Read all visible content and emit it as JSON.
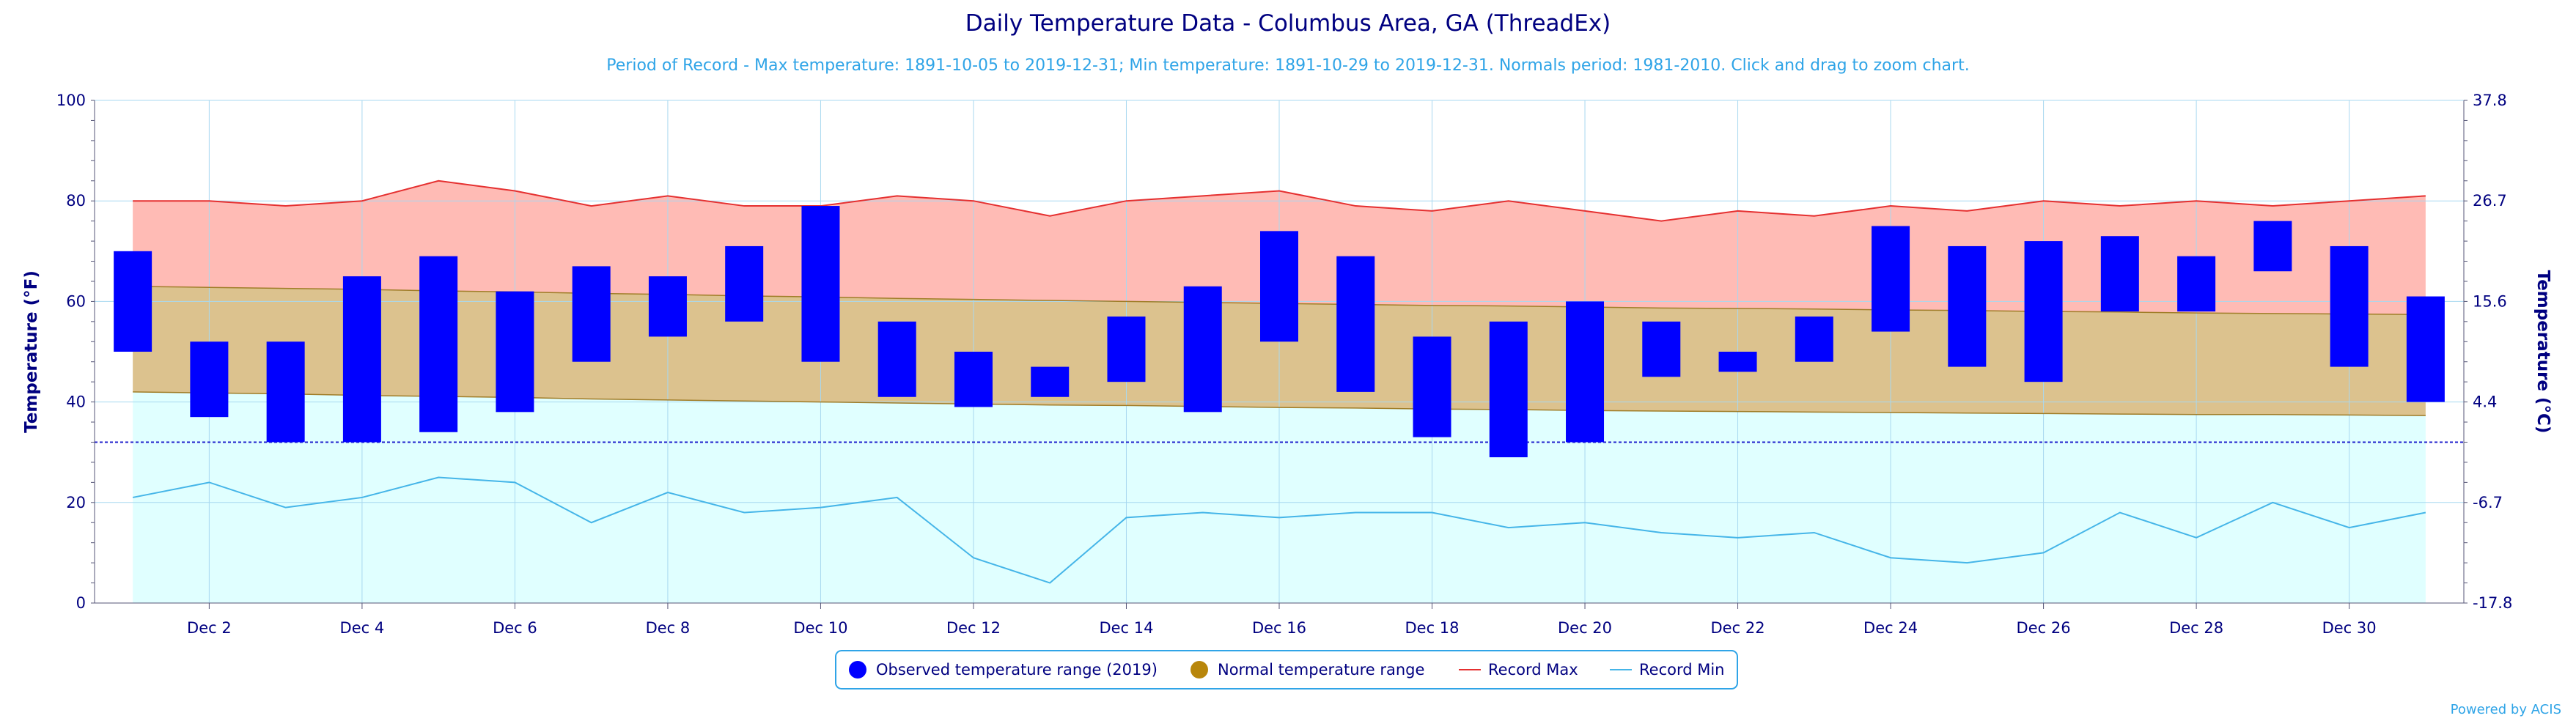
{
  "chart_data": {
    "type": "bar",
    "title": "Daily Temperature Data - Columbus Area, GA (ThreadEx)",
    "subtitle": "Period of Record - Max temperature: 1891-10-05 to 2019-12-31; Min temperature: 1891-10-29 to 2019-12-31. Normals period: 1981-2010. Click and drag to zoom chart.",
    "ylabel": "Temperature (°F)",
    "ylabel_right": "Temperature (°C)",
    "ylim": [
      0,
      100
    ],
    "ylim_right": [
      -17.8,
      37.8
    ],
    "y_ticks": [
      "0",
      "20",
      "40",
      "60",
      "80",
      "100"
    ],
    "y_ticks_right": [
      "-17.8",
      "-6.7",
      "4.4",
      "15.6",
      "26.7",
      "37.8"
    ],
    "freezing_line": 32,
    "x_days": [
      1,
      2,
      3,
      4,
      5,
      6,
      7,
      8,
      9,
      10,
      11,
      12,
      13,
      14,
      15,
      16,
      17,
      18,
      19,
      20,
      21,
      22,
      23,
      24,
      25,
      26,
      27,
      28,
      29,
      30,
      31
    ],
    "x_tick_labels": [
      "Dec 2",
      "Dec 4",
      "Dec 6",
      "Dec 8",
      "Dec 10",
      "Dec 12",
      "Dec 14",
      "Dec 16",
      "Dec 18",
      "Dec 20",
      "Dec 22",
      "Dec 24",
      "Dec 26",
      "Dec 28",
      "Dec 30"
    ],
    "series": [
      {
        "name": "Observed temperature range (2019)",
        "color": "#0000ff",
        "low": [
          50,
          37,
          32,
          32,
          34,
          38,
          48,
          53,
          56,
          48,
          41,
          39,
          41,
          44,
          38,
          52,
          42,
          33,
          29,
          32,
          45,
          46,
          48,
          54,
          47,
          44,
          58,
          58,
          66,
          47,
          40
        ],
        "high": [
          70,
          52,
          52,
          65,
          69,
          62,
          67,
          65,
          71,
          79,
          56,
          50,
          47,
          57,
          63,
          74,
          69,
          53,
          56,
          60,
          56,
          50,
          57,
          75,
          71,
          72,
          73,
          69,
          76,
          71,
          61
        ]
      },
      {
        "name": "Normal temperature range",
        "color": "#b8860b",
        "low": [
          42,
          41.8,
          41.6,
          41.3,
          41.1,
          40.9,
          40.6,
          40.4,
          40.2,
          40.0,
          39.8,
          39.6,
          39.4,
          39.3,
          39.1,
          38.9,
          38.8,
          38.6,
          38.5,
          38.3,
          38.2,
          38.1,
          38.0,
          37.9,
          37.8,
          37.7,
          37.6,
          37.5,
          37.5,
          37.4,
          37.3
        ],
        "high": [
          63,
          62.8,
          62.6,
          62.4,
          62.1,
          61.9,
          61.6,
          61.4,
          61.1,
          60.9,
          60.6,
          60.4,
          60.2,
          60.0,
          59.8,
          59.6,
          59.4,
          59.2,
          59.1,
          58.9,
          58.7,
          58.6,
          58.5,
          58.3,
          58.2,
          58.0,
          57.9,
          57.7,
          57.6,
          57.5,
          57.4
        ]
      },
      {
        "name": "Record Max",
        "color": "#e53030",
        "values": [
          80,
          80,
          79,
          80,
          84,
          82,
          79,
          81,
          79,
          79,
          81,
          80,
          77,
          80,
          81,
          82,
          79,
          78,
          80,
          78,
          76,
          78,
          77,
          79,
          78,
          80,
          79,
          80,
          79,
          80,
          81
        ]
      },
      {
        "name": "Record Min",
        "color": "#45b5e8",
        "values": [
          21,
          24,
          19,
          21,
          25,
          24,
          16,
          22,
          18,
          19,
          21,
          9,
          4,
          17,
          18,
          17,
          18,
          18,
          15,
          16,
          14,
          13,
          14,
          9,
          8,
          10,
          18,
          13,
          20,
          15,
          18
        ]
      }
    ],
    "grid": true,
    "legend_position": "bottom"
  },
  "credit": "Powered by ACIS"
}
